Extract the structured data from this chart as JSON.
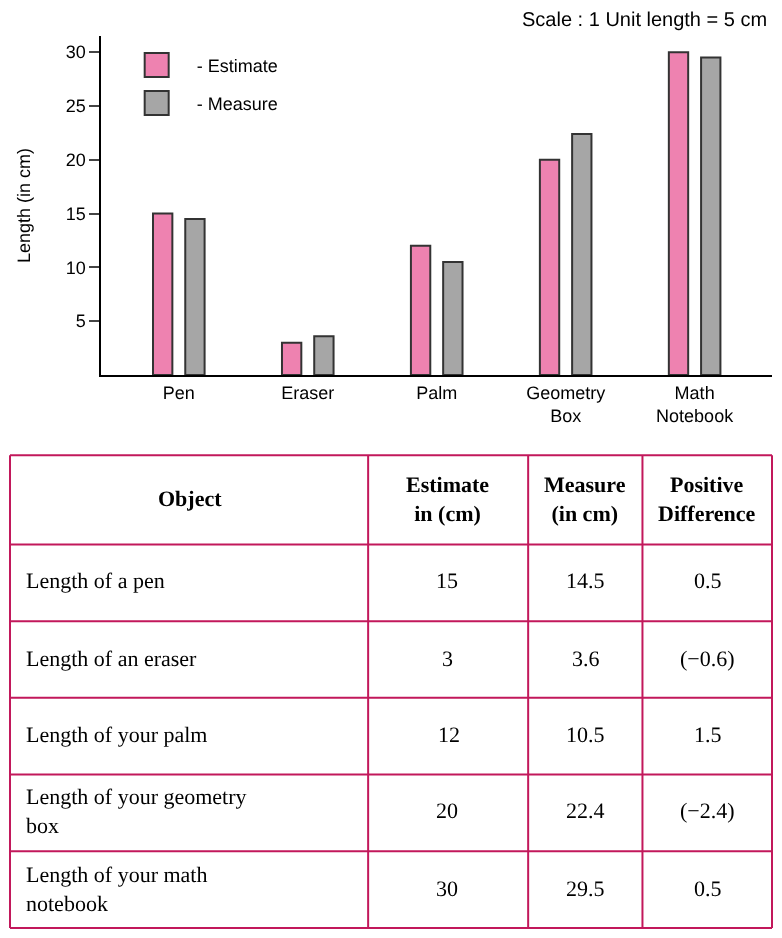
{
  "chart_data": {
    "type": "bar",
    "ylabel": "Length (in cm)",
    "categories": [
      "Pen",
      "Eraser",
      "Palm",
      "Geometry\nBox",
      "Math\nNotebook"
    ],
    "series": [
      {
        "name": "- Estimate",
        "color": "#ee82b0",
        "values": [
          15,
          3,
          12,
          20,
          30
        ]
      },
      {
        "name": "- Measure",
        "color": "#a6a6a6",
        "values": [
          14.5,
          3.6,
          10.5,
          22.4,
          29.5
        ]
      }
    ],
    "ylim": [
      0,
      31.5
    ],
    "yticks": [
      5,
      10,
      15,
      20,
      25,
      30
    ],
    "legend": "top left",
    "annotations": [
      "Scale : 1 Unit length = 5 cm",
      "Object",
      "Estimate\nin (cm)",
      "Measure\n(in cm)",
      "Positive\nDifference",
      "Length of a pen",
      "15",
      "14.5",
      "0.5",
      "Length of an eraser",
      "3",
      "3.6",
      "(−0.6)",
      "Length of your palm",
      "12",
      "10.5",
      "1.5",
      "Length of your geometry\nbox",
      "20",
      "22.4",
      "(−2.4)",
      "Length of your math\nnotebook",
      "30",
      "29.5",
      "0.5"
    ]
  }
}
